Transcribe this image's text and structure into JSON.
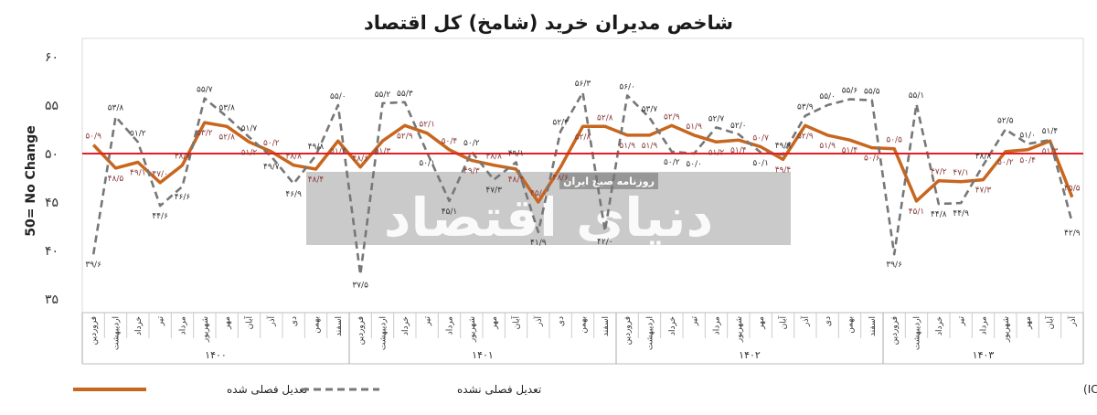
{
  "chart_data": {
    "type": "line",
    "title": "شاخص مدیران خرید (شامخ) کل اقتصاد",
    "ylabel": "50= No Change",
    "ylim": [
      35,
      60
    ],
    "yticks": [
      "۶۰",
      "۵۵",
      "۵۰",
      "۴۵",
      "۴۰",
      "۳۵"
    ],
    "reference_line": {
      "value": 50,
      "color": "#e31e24"
    },
    "months": [
      "فروردین",
      "اردیبهشت",
      "خرداد",
      "تیر",
      "مرداد",
      "شهریور",
      "مهر",
      "آبان",
      "آذر",
      "دی",
      "بهمن",
      "اسفند"
    ],
    "years": [
      {
        "label": "۱۴۰۰",
        "months": 12
      },
      {
        "label": "۱۴۰۱",
        "months": 12
      },
      {
        "label": "۱۴۰۲",
        "months": 12
      },
      {
        "label": "۱۴۰۳",
        "months": 9
      }
    ],
    "series": [
      {
        "name": "تعدیل فصلی شده",
        "color": "#c8661e",
        "style": "solid",
        "values": [
          50.9,
          48.5,
          49.1,
          47.0,
          48.8,
          53.2,
          52.8,
          51.2,
          50.2,
          48.8,
          48.4,
          51.3,
          48.6,
          51.3,
          52.9,
          52.1,
          50.4,
          49.3,
          48.8,
          48.4,
          45.0,
          48.6,
          52.8,
          52.8,
          51.9,
          51.9,
          52.9,
          51.9,
          51.2,
          51.4,
          50.7,
          49.4,
          52.9,
          51.9,
          51.4,
          50.6,
          50.5,
          45.1,
          47.2,
          47.1,
          47.3,
          50.2,
          50.4,
          51.3,
          45.5
        ]
      },
      {
        "name": "تعدیل فصلی نشده",
        "color": "#777777",
        "style": "dashed",
        "values": [
          39.6,
          53.8,
          51.2,
          44.6,
          46.6,
          55.7,
          53.8,
          51.7,
          49.7,
          46.9,
          49.8,
          55.0,
          37.5,
          55.2,
          55.3,
          50.1,
          45.1,
          50.2,
          47.3,
          49.1,
          41.9,
          52.3,
          56.3,
          42.0,
          56.0,
          53.7,
          50.2,
          50.0,
          52.7,
          52.0,
          50.1,
          49.9,
          53.9,
          55.0,
          55.6,
          55.5,
          39.6,
          55.1,
          44.8,
          44.9,
          48.8,
          52.5,
          51.0,
          51.4,
          42.9
        ]
      }
    ],
    "labels_primary": [
      "۵۰/۹",
      "۴۸/۵",
      "۴۹/۱",
      "۴۷/۰",
      "۴۸/۸",
      "۵۳/۲",
      "۵۲/۸",
      "۵۱/۲",
      "۵۰/۲",
      "۴۸/۸",
      "۴۸/۴",
      "۵۱/۳",
      "۴۸/۶",
      "۵۱/۳",
      "۵۲/۹",
      "۵۲/۱",
      "۵۰/۴",
      "۴۹/۳",
      "۴۸/۸",
      "۴۸/۴",
      "۴۵/۰",
      "۴۸/۶",
      "۵۲/۸",
      "۵۲/۸",
      "۵۱/۹",
      "۵۱/۹",
      "۵۲/۹",
      "۵۱/۹",
      "۵۱/۲",
      "۵۱/۴",
      "۵۰/۷",
      "۴۹/۴",
      "۵۲/۹",
      "۵۱/۹",
      "۵۱/۴",
      "۵۰/۶",
      "۵۰/۵",
      "۴۵/۱",
      "۴۷/۲",
      "۴۷/۱",
      "۴۷/۳",
      "۵۰/۲",
      "۵۰/۴",
      "۵۱/۳",
      "۴۵/۵"
    ],
    "labels_secondary": [
      "۳۹/۶",
      "۵۳/۸",
      "۵۱/۲",
      "۴۴/۶",
      "۴۶/۶",
      "۵۵/۷",
      "۵۳/۸",
      "۵۱/۷",
      "۴۹/۷",
      "۴۶/۹",
      "۴۹/۸",
      "۵۵/۰",
      "۳۷/۵",
      "۵۵/۲",
      "۵۵/۳",
      "۵۰/۱",
      "۴۵/۱",
      "۵۰/۲",
      "۴۷/۳",
      "۴۹/۱",
      "۴۱/۹",
      "۵۲/۳",
      "۵۶/۳",
      "۴۲/۰",
      "۵۶/۰",
      "۵۳/۷",
      "۵۰/۲",
      "۵۰/۰",
      "۵۲/۷",
      "۵۲/۰",
      "۵۰/۱",
      "۴۹/۹",
      "۵۳/۹",
      "۵۵/۰",
      "۵۵/۶",
      "۵۵/۵",
      "۳۹/۶",
      "۵۵/۱",
      "۴۴/۸",
      "۴۴/۹",
      "۴۸/۸",
      "۵۲/۵",
      "۵۱/۰",
      "۵۱/۴",
      "۴۲/۹"
    ],
    "legend": {
      "position": "bottom-left"
    },
    "grid": false
  },
  "source_text": "منبع: اتاق بازرگانی، صنایع، معادن و کشاورزی ایران (ICCIMA)",
  "watermark": {
    "tagline": "روزنامه صبح ایران",
    "logo_text": "دنیای اقتصاد"
  }
}
